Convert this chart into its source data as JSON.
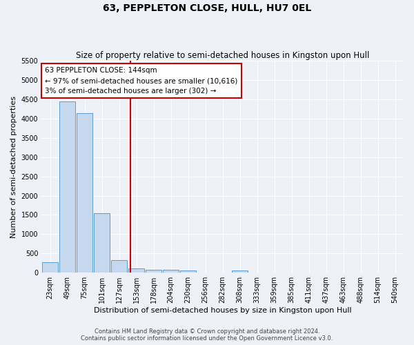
{
  "title": "63, PEPPLETON CLOSE, HULL, HU7 0EL",
  "subtitle": "Size of property relative to semi-detached houses in Kingston upon Hull",
  "xlabel": "Distribution of semi-detached houses by size in Kingston upon Hull",
  "ylabel": "Number of semi-detached properties",
  "footer_line1": "Contains HM Land Registry data © Crown copyright and database right 2024.",
  "footer_line2": "Contains public sector information licensed under the Open Government Licence v3.0.",
  "categories": [
    "23sqm",
    "49sqm",
    "75sqm",
    "101sqm",
    "127sqm",
    "153sqm",
    "178sqm",
    "204sqm",
    "230sqm",
    "256sqm",
    "282sqm",
    "308sqm",
    "333sqm",
    "359sqm",
    "385sqm",
    "411sqm",
    "437sqm",
    "463sqm",
    "488sqm",
    "514sqm",
    "540sqm"
  ],
  "values": [
    270,
    4450,
    4150,
    1550,
    330,
    120,
    75,
    70,
    60,
    0,
    0,
    60,
    0,
    0,
    0,
    0,
    0,
    0,
    0,
    0,
    0
  ],
  "bar_color": "#c5d8ed",
  "bar_edge_color": "#5b9bd5",
  "ylim": [
    0,
    5500
  ],
  "yticks": [
    0,
    500,
    1000,
    1500,
    2000,
    2500,
    3000,
    3500,
    4000,
    4500,
    5000,
    5500
  ],
  "red_line_color": "#cc0000",
  "annotation_line1": "63 PEPPLETON CLOSE: 144sqm",
  "annotation_line2": "← 97% of semi-detached houses are smaller (10,616)",
  "annotation_line3": "3% of semi-detached houses are larger (302) →",
  "annotation_box_color": "#ffffff",
  "annotation_box_edge": "#cc0000",
  "background_color": "#eef2f8",
  "grid_color": "#ffffff",
  "title_fontsize": 10,
  "subtitle_fontsize": 8.5,
  "tick_fontsize": 7,
  "ylabel_fontsize": 8,
  "xlabel_fontsize": 8,
  "annotation_fontsize": 7.5
}
